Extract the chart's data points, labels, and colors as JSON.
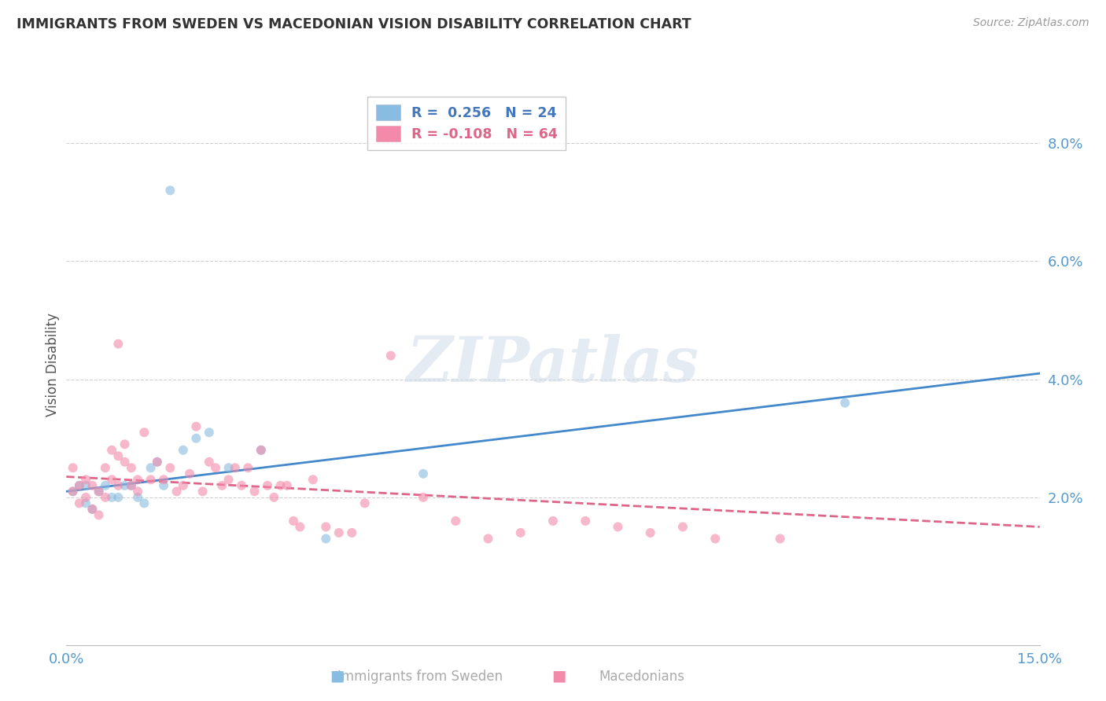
{
  "title": "IMMIGRANTS FROM SWEDEN VS MACEDONIAN VISION DISABILITY CORRELATION CHART",
  "source": "Source: ZipAtlas.com",
  "ylabel": "Vision Disability",
  "watermark": "ZIPatlas",
  "xlim": [
    0.0,
    0.15
  ],
  "ylim": [
    -0.005,
    0.09
  ],
  "xticks": [
    0.0,
    0.03,
    0.06,
    0.09,
    0.12,
    0.15
  ],
  "xtick_labels": [
    "0.0%",
    "",
    "",
    "",
    "",
    "15.0%"
  ],
  "yticks": [
    0.0,
    0.02,
    0.04,
    0.06,
    0.08
  ],
  "ytick_labels": [
    "",
    "2.0%",
    "4.0%",
    "6.0%",
    "8.0%"
  ],
  "blue_scatter_x": [
    0.001,
    0.002,
    0.003,
    0.003,
    0.004,
    0.005,
    0.006,
    0.007,
    0.008,
    0.009,
    0.01,
    0.011,
    0.012,
    0.013,
    0.014,
    0.015,
    0.018,
    0.02,
    0.022,
    0.025,
    0.03,
    0.04,
    0.055,
    0.12
  ],
  "blue_scatter_y": [
    0.021,
    0.022,
    0.022,
    0.019,
    0.018,
    0.021,
    0.022,
    0.02,
    0.02,
    0.022,
    0.022,
    0.02,
    0.019,
    0.025,
    0.026,
    0.022,
    0.028,
    0.03,
    0.031,
    0.025,
    0.028,
    0.013,
    0.024,
    0.036
  ],
  "blue_outlier_x": [
    0.016
  ],
  "blue_outlier_y": [
    0.072
  ],
  "pink_scatter_x": [
    0.001,
    0.001,
    0.002,
    0.002,
    0.003,
    0.003,
    0.004,
    0.004,
    0.005,
    0.005,
    0.006,
    0.006,
    0.007,
    0.007,
    0.008,
    0.008,
    0.009,
    0.009,
    0.01,
    0.01,
    0.011,
    0.011,
    0.012,
    0.013,
    0.014,
    0.015,
    0.016,
    0.017,
    0.018,
    0.019,
    0.02,
    0.021,
    0.022,
    0.023,
    0.024,
    0.025,
    0.026,
    0.027,
    0.028,
    0.029,
    0.03,
    0.031,
    0.032,
    0.033,
    0.034,
    0.035,
    0.036,
    0.038,
    0.04,
    0.042,
    0.044,
    0.046,
    0.05,
    0.055,
    0.06,
    0.065,
    0.07,
    0.075,
    0.08,
    0.085,
    0.09,
    0.095,
    0.1,
    0.11
  ],
  "pink_scatter_y": [
    0.021,
    0.025,
    0.022,
    0.019,
    0.023,
    0.02,
    0.022,
    0.018,
    0.021,
    0.017,
    0.02,
    0.025,
    0.023,
    0.028,
    0.027,
    0.022,
    0.026,
    0.029,
    0.022,
    0.025,
    0.021,
    0.023,
    0.031,
    0.023,
    0.026,
    0.023,
    0.025,
    0.021,
    0.022,
    0.024,
    0.032,
    0.021,
    0.026,
    0.025,
    0.022,
    0.023,
    0.025,
    0.022,
    0.025,
    0.021,
    0.028,
    0.022,
    0.02,
    0.022,
    0.022,
    0.016,
    0.015,
    0.023,
    0.015,
    0.014,
    0.014,
    0.019,
    0.044,
    0.02,
    0.016,
    0.013,
    0.014,
    0.016,
    0.016,
    0.015,
    0.014,
    0.015,
    0.013,
    0.013
  ],
  "pink_outlier_x": [
    0.008
  ],
  "pink_outlier_y": [
    0.046
  ],
  "blue_line_x0": 0.0,
  "blue_line_y0": 0.021,
  "blue_line_x1": 0.15,
  "blue_line_y1": 0.041,
  "pink_line_x0": 0.0,
  "pink_line_y0": 0.0235,
  "pink_line_x1": 0.15,
  "pink_line_y1": 0.015,
  "blue_dot_color": "#88bce0",
  "pink_dot_color": "#f48aaa",
  "blue_line_color": "#4488cc",
  "pink_line_color": "#dd6688",
  "grid_color": "#d0d0d0",
  "bg_color": "#ffffff",
  "title_color": "#333333",
  "axis_tick_color": "#5599cc",
  "ylabel_color": "#555555",
  "scatter_size": 75,
  "scatter_alpha": 0.6,
  "legend_blue_label": "R =  0.256   N = 24",
  "legend_pink_label": "R = -0.108   N = 64",
  "legend_blue_text_color": "#4477bb",
  "legend_pink_text_color": "#dd6688",
  "source_color": "#999999",
  "watermark_color": "#ccd8e8",
  "watermark_alpha": 0.5
}
